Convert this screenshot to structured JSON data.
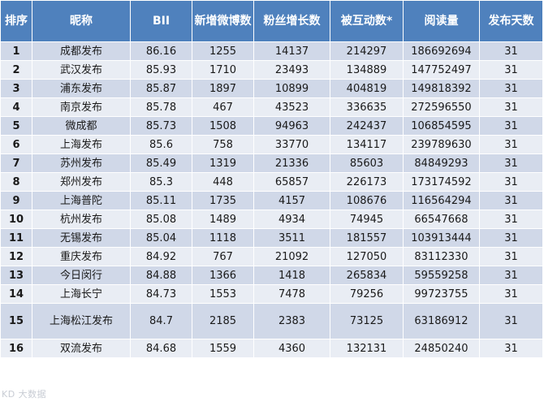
{
  "table": {
    "headers": [
      "排序",
      "昵称",
      "BII",
      "新增微博数",
      "粉丝增长数",
      "被互动数*",
      "阅读量",
      "发布天数"
    ],
    "rows": [
      [
        "1",
        "成都发布",
        "86.16",
        "1255",
        "14137",
        "214297",
        "186692694",
        "31"
      ],
      [
        "2",
        "武汉发布",
        "85.93",
        "1710",
        "23493",
        "134889",
        "147752497",
        "31"
      ],
      [
        "3",
        "浦东发布",
        "85.87",
        "1897",
        "10899",
        "404819",
        "149818392",
        "31"
      ],
      [
        "4",
        "南京发布",
        "85.78",
        "467",
        "43523",
        "336635",
        "272596550",
        "31"
      ],
      [
        "5",
        "微成都",
        "85.73",
        "1508",
        "94963",
        "242437",
        "106854595",
        "31"
      ],
      [
        "6",
        "上海发布",
        "85.6",
        "758",
        "33770",
        "134117",
        "239789630",
        "31"
      ],
      [
        "7",
        "苏州发布",
        "85.49",
        "1319",
        "21336",
        "85603",
        "84849293",
        "31"
      ],
      [
        "8",
        "郑州发布",
        "85.3",
        "448",
        "65857",
        "226173",
        "173174592",
        "31"
      ],
      [
        "9",
        "上海普陀",
        "85.11",
        "1735",
        "4157",
        "108676",
        "116564294",
        "31"
      ],
      [
        "10",
        "杭州发布",
        "85.08",
        "1489",
        "4934",
        "74945",
        "66547668",
        "31"
      ],
      [
        "11",
        "无锡发布",
        "85.04",
        "1118",
        "3511",
        "181557",
        "103913444",
        "31"
      ],
      [
        "12",
        "重庆发布",
        "84.92",
        "767",
        "21092",
        "127050",
        "83112330",
        "31"
      ],
      [
        "13",
        "今日闵行",
        "84.88",
        "1366",
        "1418",
        "265834",
        "59559258",
        "31"
      ],
      [
        "14",
        "上海长宁",
        "84.73",
        "1553",
        "7478",
        "79256",
        "99723755",
        "31"
      ],
      [
        "15",
        "上海松江发布",
        "84.7",
        "2185",
        "2383",
        "73125",
        "63186912",
        "31"
      ],
      [
        "16",
        "双流发布",
        "84.68",
        "1559",
        "4360",
        "132131",
        "24850240",
        "31"
      ]
    ]
  },
  "watermark": "KD 大数据"
}
